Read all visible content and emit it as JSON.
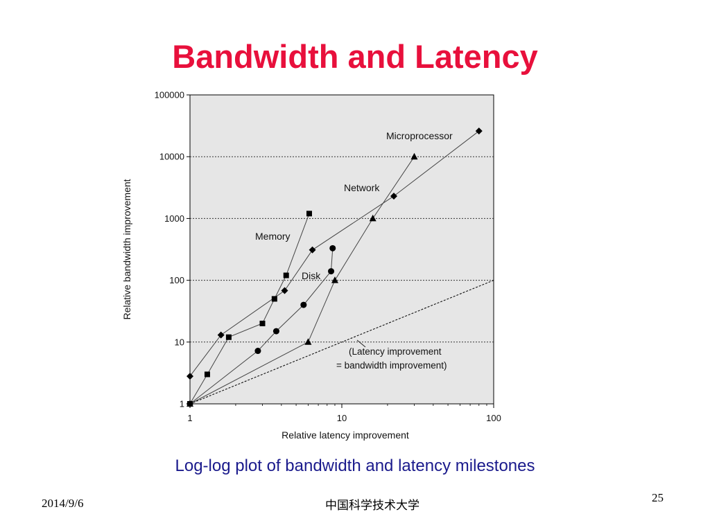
{
  "slide": {
    "title": "Bandwidth and Latency",
    "caption": "Log-log plot of bandwidth and latency milestones",
    "footer_date": "2014/9/6",
    "footer_org": "中国科学技术大学",
    "page_number": "25",
    "colors": {
      "title": "#e8103c",
      "caption": "#1a1a8c",
      "plot_bg": "#e6e6e6",
      "series": "#000000"
    }
  },
  "chart_data": {
    "type": "scatter",
    "xlabel": "Relative latency improvement",
    "ylabel": "Relative bandwidth improvement",
    "xscale": "log",
    "yscale": "log",
    "xlim": [
      1,
      100
    ],
    "ylim": [
      1,
      100000
    ],
    "xticks": [
      "1",
      "10",
      "100"
    ],
    "yticks": [
      "1",
      "10",
      "100",
      "1000",
      "10000",
      "100000"
    ],
    "grid": "horizontal-dotted",
    "series": [
      {
        "name": "Microprocessor",
        "marker": "diamond",
        "points": [
          [
            1,
            2.8
          ],
          [
            1.6,
            13
          ],
          [
            4.2,
            68
          ],
          [
            6.4,
            310
          ],
          [
            22,
            2300
          ],
          [
            80,
            26000
          ]
        ]
      },
      {
        "name": "Network",
        "marker": "triangle",
        "points": [
          [
            1,
            1
          ],
          [
            6,
            10
          ],
          [
            9,
            100
          ],
          [
            16,
            1000
          ],
          [
            30,
            10000
          ]
        ]
      },
      {
        "name": "Memory",
        "marker": "square",
        "points": [
          [
            1,
            1
          ],
          [
            1.3,
            3
          ],
          [
            1.8,
            12
          ],
          [
            3,
            20
          ],
          [
            3.6,
            50
          ],
          [
            4.3,
            120
          ],
          [
            6.1,
            1200
          ]
        ]
      },
      {
        "name": "Disk",
        "marker": "circle",
        "points": [
          [
            1,
            1
          ],
          [
            2.8,
            7.2
          ],
          [
            3.7,
            15
          ],
          [
            5.6,
            40
          ],
          [
            8.5,
            140
          ],
          [
            8.7,
            330
          ]
        ]
      }
    ],
    "reference_line": {
      "label_line1": "(Latency improvement",
      "label_line2": "= bandwidth improvement)",
      "points": [
        [
          1,
          1
        ],
        [
          100,
          100
        ]
      ]
    }
  }
}
